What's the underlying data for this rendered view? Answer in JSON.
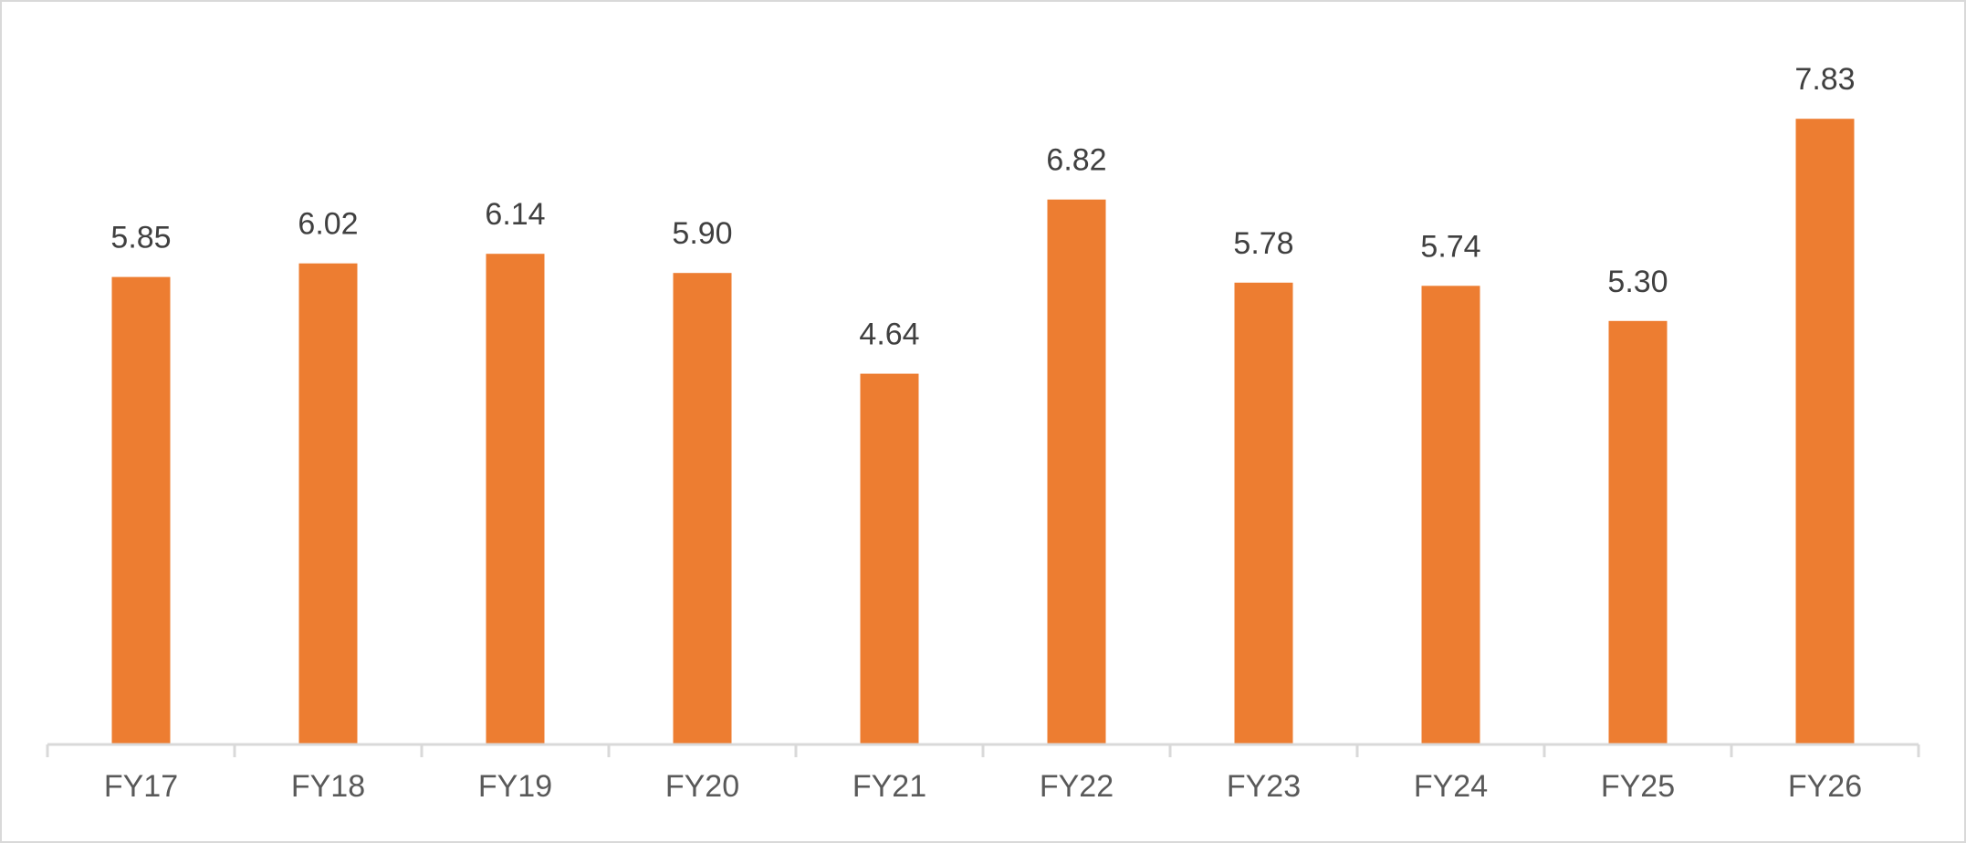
{
  "chart_data": {
    "type": "bar",
    "categories": [
      "FY17",
      "FY18",
      "FY19",
      "FY20",
      "FY21",
      "FY22",
      "FY23",
      "FY24",
      "FY25",
      "FY26"
    ],
    "values": [
      5.85,
      6.02,
      6.14,
      5.9,
      4.64,
      6.82,
      5.78,
      5.74,
      5.3,
      7.83
    ],
    "data_labels": [
      "5.85",
      "6.02",
      "6.14",
      "5.90",
      "4.64",
      "6.82",
      "5.78",
      "5.74",
      "5.30",
      "7.83"
    ],
    "title": "",
    "xlabel": "",
    "ylabel": "",
    "ylim": [
      0,
      8.7
    ],
    "grid": false,
    "legend": "none",
    "bar_color": "#ED7D31",
    "axis_color": "#D9D9D9",
    "label_color": "#404040",
    "tick_color": "#595959"
  }
}
